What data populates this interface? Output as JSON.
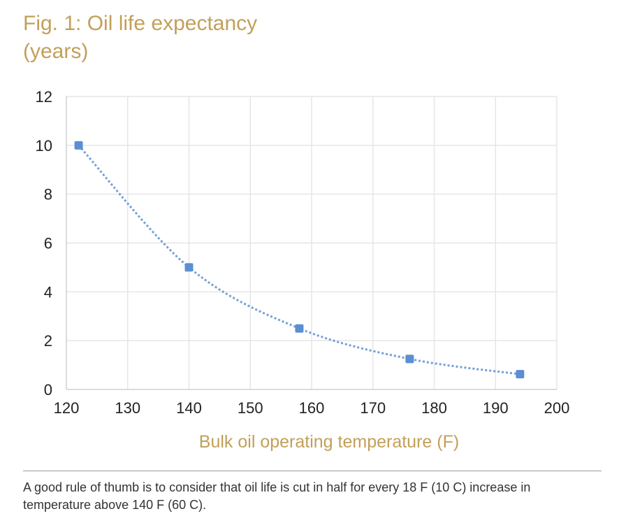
{
  "title": {
    "line1": "Fig. 1: Oil life expectancy",
    "line2": "(years)"
  },
  "caption": "A good rule of thumb is to consider that oil life is cut in half for every 18 F (10 C) increase in temperature above 140 F (60 C).",
  "chart_data": {
    "type": "scatter",
    "title": "Fig. 1: Oil life expectancy (years)",
    "xlabel": "Bulk oil operating temperature (F)",
    "ylabel": "",
    "xlim": [
      120,
      200
    ],
    "ylim": [
      0,
      12
    ],
    "xticks": [
      120,
      130,
      140,
      150,
      160,
      170,
      180,
      190,
      200
    ],
    "yticks": [
      0,
      2,
      4,
      6,
      8,
      10,
      12
    ],
    "grid": true,
    "smoothed_line": true,
    "line_style": "dotted",
    "marker_color": "#5b8fd2",
    "series": [
      {
        "x": [
          122,
          140,
          158,
          176,
          194
        ],
        "y": [
          10,
          5,
          2.5,
          1.25,
          0.625
        ]
      }
    ]
  }
}
